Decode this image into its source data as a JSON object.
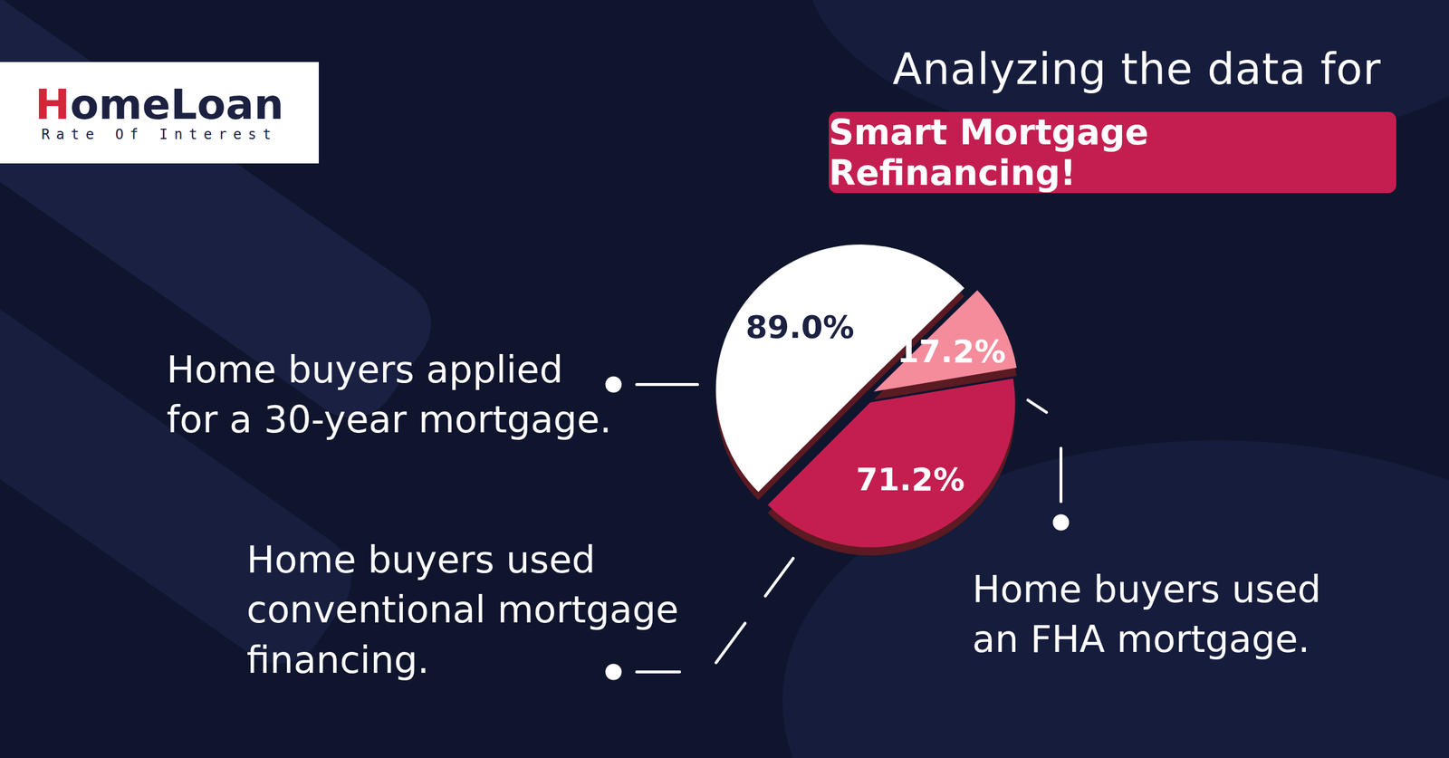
{
  "logo": {
    "name": "HomeLoan",
    "tagline": "Rate Of Interest"
  },
  "chart_data": {
    "type": "pie",
    "subtitle": "Analyzing the data for",
    "title": "Smart Mortgage Refinancing!",
    "categories": [
      "Home buyers applied\nfor a 30-year mortgage.",
      "Home buyers used\nan FHA mortgage.",
      "Home buyers used\nconventional mortgage\nfinancing."
    ],
    "values": [
      89.0,
      17.2,
      71.2
    ],
    "value_labels": [
      "89.0%",
      "17.2%",
      "71.2%"
    ],
    "colors": [
      "#ffffff",
      "#f48c9c",
      "#c41e50"
    ],
    "data_labels": true
  }
}
